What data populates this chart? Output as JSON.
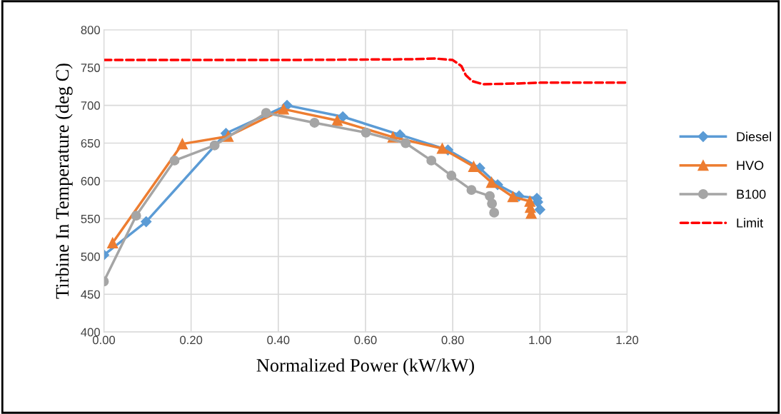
{
  "chart_data": {
    "type": "line",
    "xlabel": "Normalized Power (kW/kW)",
    "ylabel": "Tirbine In Temperature (deg C)",
    "xlim": [
      0,
      1.2
    ],
    "xticks": [
      {
        "value": 0,
        "label": "0.00"
      },
      {
        "value": 0.2,
        "label": "0.20"
      },
      {
        "value": 0.4,
        "label": "0.40"
      },
      {
        "value": 0.6,
        "label": "0.60"
      },
      {
        "value": 0.8,
        "label": "0.80"
      },
      {
        "value": 1.0,
        "label": "1.00"
      },
      {
        "value": 1.2,
        "label": "1.20"
      }
    ],
    "ylim": [
      400,
      800
    ],
    "yticks": [
      400,
      450,
      500,
      550,
      600,
      650,
      700,
      750,
      800
    ],
    "grid": true,
    "legend": "right",
    "series": [
      {
        "name": "Diesel",
        "color": "#5b9bd5",
        "marker": "diamond",
        "line_style": "solid",
        "x": [
          0.0,
          0.097,
          0.28,
          0.42,
          0.548,
          0.679,
          0.789,
          0.862,
          0.903,
          0.952,
          0.993,
          0.995,
          1.0
        ],
        "values": [
          502,
          546,
          663,
          700,
          685,
          661,
          641,
          617,
          595,
          580,
          577,
          572,
          562
        ]
      },
      {
        "name": "HVO",
        "color": "#ed7d31",
        "marker": "triangle",
        "line_style": "solid",
        "x": [
          0.02,
          0.18,
          0.285,
          0.412,
          0.535,
          0.663,
          0.776,
          0.848,
          0.889,
          0.938,
          0.977,
          0.978,
          0.98
        ],
        "values": [
          518,
          649,
          659,
          695,
          680,
          658,
          643,
          619,
          598,
          579,
          573,
          565,
          557
        ]
      },
      {
        "name": "B100",
        "color": "#a5a5a5",
        "marker": "circle",
        "line_style": "solid",
        "x": [
          0.0,
          0.074,
          0.162,
          0.254,
          0.372,
          0.483,
          0.601,
          0.692,
          0.751,
          0.797,
          0.843,
          0.885,
          0.89,
          0.895
        ],
        "values": [
          467,
          554,
          627,
          647,
          690,
          677,
          664,
          650,
          627,
          607,
          588,
          580,
          570,
          558
        ]
      },
      {
        "name": "Limit",
        "color": "#ff0000",
        "marker": "none",
        "line_style": "dashed",
        "x": [
          0.0,
          0.4,
          0.7,
          0.76,
          0.8,
          0.82,
          0.83,
          0.845,
          0.87,
          0.95,
          1.0,
          1.2
        ],
        "values": [
          760,
          760,
          761,
          762,
          760,
          752,
          740,
          732,
          728,
          729,
          730,
          730
        ]
      }
    ]
  }
}
